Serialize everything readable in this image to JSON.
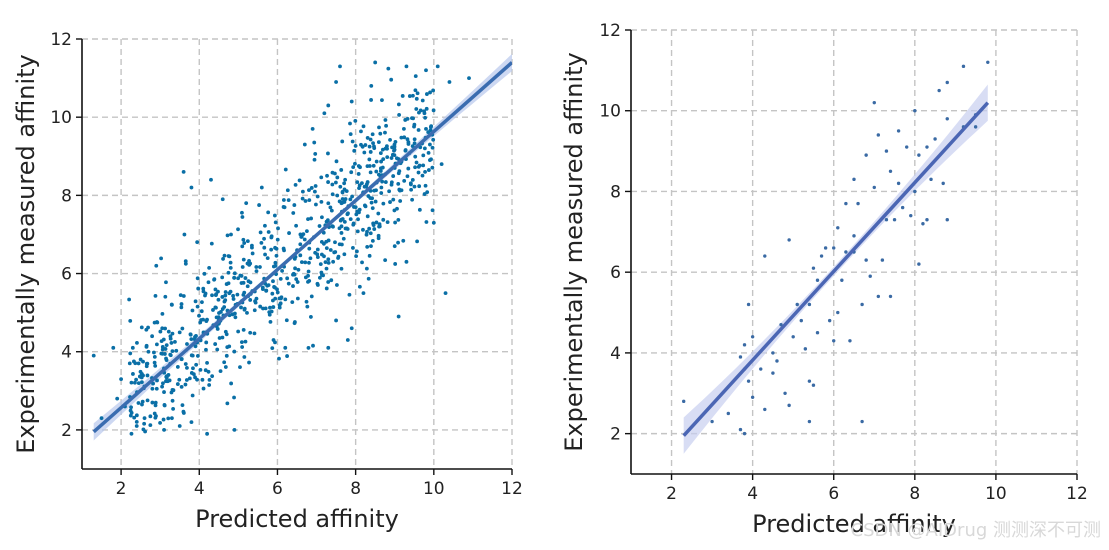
{
  "chart_data": [
    {
      "type": "scatter",
      "xlabel": "Predicted affinity",
      "ylabel": "Experimentally measured affinity",
      "xlim": [
        1,
        12
      ],
      "ylim": [
        1,
        12
      ],
      "xticks": [
        2,
        4,
        6,
        8,
        10,
        12
      ],
      "yticks": [
        2,
        4,
        6,
        8,
        10,
        12
      ],
      "grid": true,
      "point_color": "#0a6fa6",
      "fit_color": "#3a6cb0",
      "ci_color": "#b8c8ec",
      "regression": {
        "x_start": 1.3,
        "y_start": 1.95,
        "x_end": 12.0,
        "y_end": 11.4
      },
      "ci_halfwidth_ends": 0.22,
      "points_note": "approx. 900 points spread around the fit line",
      "points": [
        [
          1.3,
          3.9
        ],
        [
          1.8,
          4.1
        ],
        [
          2.3,
          4.1
        ],
        [
          2.0,
          3.3
        ],
        [
          2.5,
          3.8
        ],
        [
          2.7,
          4.0
        ],
        [
          2.9,
          6.2
        ],
        [
          3.3,
          5.2
        ],
        [
          3.6,
          8.6
        ],
        [
          3.8,
          8.2
        ],
        [
          4.3,
          8.4
        ],
        [
          4.6,
          7.9
        ],
        [
          5.2,
          7.8
        ],
        [
          5.6,
          8.2
        ],
        [
          6.7,
          9.3
        ],
        [
          6.9,
          9.7
        ],
        [
          7.2,
          10.1
        ],
        [
          7.3,
          10.3
        ],
        [
          7.5,
          10.9
        ],
        [
          7.6,
          11.3
        ],
        [
          7.9,
          10.4
        ],
        [
          8.4,
          10.8
        ],
        [
          8.5,
          11.4
        ],
        [
          9.3,
          11.3
        ],
        [
          9.8,
          11.2
        ],
        [
          10.1,
          11.3
        ],
        [
          10.4,
          10.9
        ],
        [
          10.9,
          11.0
        ],
        [
          10.0,
          7.3
        ],
        [
          10.3,
          5.5
        ],
        [
          9.0,
          8.7
        ],
        [
          9.9,
          8.9
        ],
        [
          9.9,
          9.3
        ],
        [
          9.8,
          9.7
        ],
        [
          10.2,
          8.8
        ],
        [
          9.3,
          6.3
        ],
        [
          8.6,
          7.2
        ],
        [
          8.2,
          5.5
        ],
        [
          9.1,
          4.9
        ],
        [
          9.0,
          6.7
        ],
        [
          7.9,
          4.6
        ],
        [
          7.5,
          4.8
        ],
        [
          7.8,
          4.3
        ],
        [
          7.3,
          4.1
        ],
        [
          6.2,
          4.1
        ],
        [
          5.9,
          4.3
        ],
        [
          4.9,
          2.0
        ],
        [
          4.2,
          1.9
        ],
        [
          3.8,
          2.2
        ],
        [
          3.5,
          2.1
        ],
        [
          3.1,
          2.0
        ],
        [
          3.3,
          2.3
        ],
        [
          2.6,
          2.3
        ],
        [
          2.4,
          2.1
        ],
        [
          2.1,
          2.6
        ],
        [
          1.9,
          2.8
        ],
        [
          1.5,
          2.3
        ]
      ]
    },
    {
      "type": "scatter",
      "xlabel": "Predicted affinity",
      "ylabel": "Experimentally measured affinity",
      "xlim": [
        1,
        12
      ],
      "ylim": [
        1,
        12
      ],
      "xticks": [
        2,
        4,
        6,
        8,
        10,
        12
      ],
      "yticks": [
        2,
        4,
        6,
        8,
        10,
        12
      ],
      "grid": true,
      "point_color": "#3a6aa4",
      "fit_color": "#4b66b4",
      "ci_color": "#c8cff0",
      "regression": {
        "x_start": 2.3,
        "y_start": 1.95,
        "x_end": 9.8,
        "y_end": 10.2
      },
      "ci_halfwidth_ends": 0.45,
      "points": [
        [
          2.3,
          2.8
        ],
        [
          3.0,
          2.3
        ],
        [
          3.4,
          2.5
        ],
        [
          3.7,
          2.1
        ],
        [
          3.8,
          2.0
        ],
        [
          3.8,
          3.6
        ],
        [
          3.7,
          3.9
        ],
        [
          3.9,
          3.3
        ],
        [
          4.0,
          2.9
        ],
        [
          4.2,
          3.6
        ],
        [
          4.3,
          2.6
        ],
        [
          4.5,
          3.5
        ],
        [
          4.6,
          3.8
        ],
        [
          4.7,
          4.7
        ],
        [
          4.8,
          3.0
        ],
        [
          4.9,
          2.7
        ],
        [
          5.0,
          4.4
        ],
        [
          5.1,
          5.2
        ],
        [
          5.2,
          4.8
        ],
        [
          5.3,
          4.1
        ],
        [
          5.4,
          3.3
        ],
        [
          5.4,
          2.3
        ],
        [
          5.5,
          3.2
        ],
        [
          5.6,
          4.5
        ],
        [
          5.6,
          5.8
        ],
        [
          5.7,
          6.4
        ],
        [
          5.8,
          6.6
        ],
        [
          5.9,
          4.8
        ],
        [
          6.0,
          4.3
        ],
        [
          6.0,
          6.6
        ],
        [
          6.1,
          5.0
        ],
        [
          6.2,
          5.8
        ],
        [
          6.3,
          6.5
        ],
        [
          6.3,
          7.7
        ],
        [
          6.4,
          4.3
        ],
        [
          6.5,
          6.9
        ],
        [
          6.6,
          7.7
        ],
        [
          6.7,
          5.2
        ],
        [
          6.7,
          2.3
        ],
        [
          6.8,
          6.3
        ],
        [
          6.9,
          5.9
        ],
        [
          7.0,
          8.1
        ],
        [
          7.0,
          10.2
        ],
        [
          7.1,
          5.4
        ],
        [
          7.2,
          6.3
        ],
        [
          7.3,
          7.3
        ],
        [
          7.3,
          9.0
        ],
        [
          7.4,
          8.5
        ],
        [
          7.4,
          5.4
        ],
        [
          7.5,
          7.3
        ],
        [
          7.6,
          8.2
        ],
        [
          7.7,
          7.6
        ],
        [
          7.8,
          9.1
        ],
        [
          7.9,
          7.4
        ],
        [
          8.0,
          8.0
        ],
        [
          8.0,
          10.0
        ],
        [
          8.1,
          6.2
        ],
        [
          8.1,
          8.9
        ],
        [
          8.2,
          7.2
        ],
        [
          8.3,
          7.3
        ],
        [
          8.4,
          8.3
        ],
        [
          8.5,
          9.3
        ],
        [
          8.6,
          10.5
        ],
        [
          8.7,
          8.2
        ],
        [
          8.8,
          10.7
        ],
        [
          9.2,
          11.1
        ],
        [
          9.5,
          9.6
        ],
        [
          9.5,
          9.9
        ],
        [
          9.8,
          11.2
        ],
        [
          6.5,
          6.5
        ],
        [
          5.4,
          5.2
        ],
        [
          4.5,
          4.0
        ],
        [
          4.0,
          4.4
        ],
        [
          3.8,
          4.2
        ],
        [
          3.9,
          5.2
        ],
        [
          4.3,
          6.4
        ],
        [
          4.9,
          6.8
        ],
        [
          5.5,
          6.1
        ],
        [
          6.1,
          7.1
        ],
        [
          6.5,
          8.3
        ],
        [
          6.8,
          8.9
        ],
        [
          7.1,
          9.4
        ],
        [
          7.6,
          9.5
        ],
        [
          8.3,
          9.1
        ],
        [
          8.8,
          7.3
        ],
        [
          8.8,
          9.8
        ],
        [
          9.2,
          9.6
        ]
      ]
    }
  ],
  "watermark": "CSDN @AIDrug 测测深不可测"
}
